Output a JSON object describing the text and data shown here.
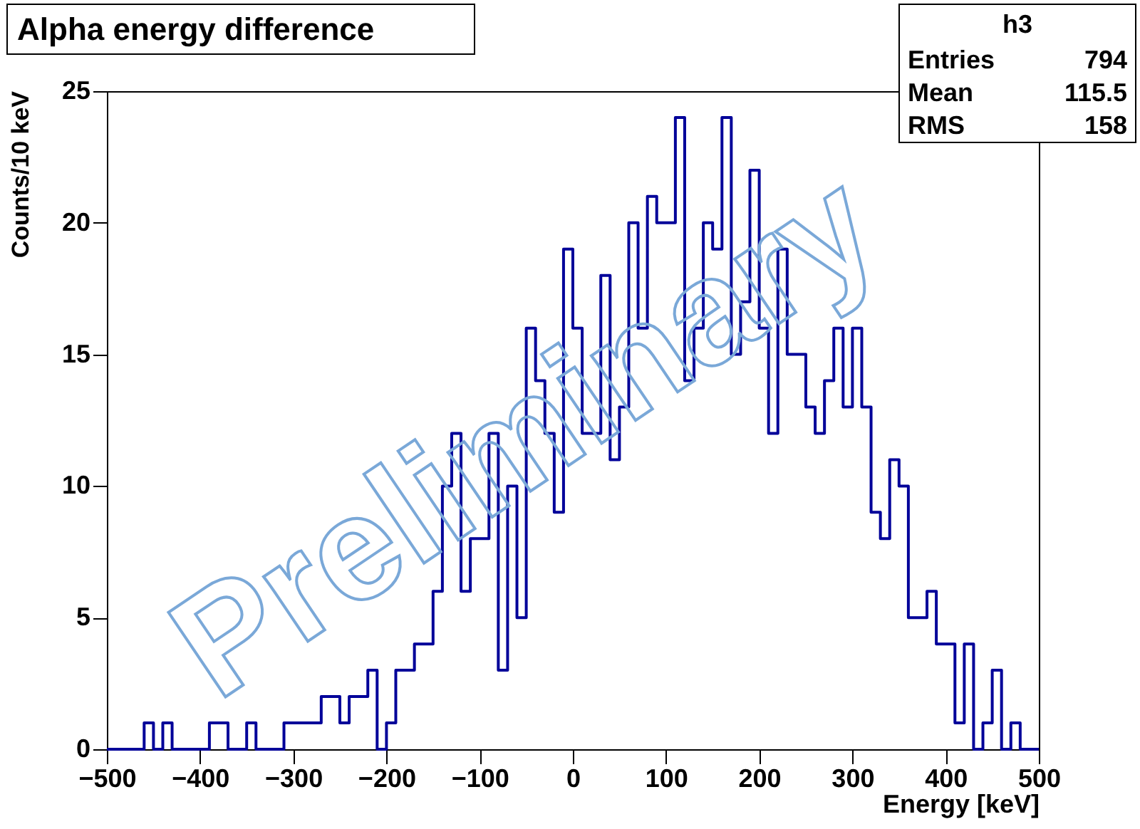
{
  "chart_data": {
    "type": "histogram",
    "title": "Alpha energy difference",
    "xlabel": "Energy [keV]",
    "ylabel": "Counts/10 keV",
    "bins": [
      -500,
      -490,
      -480,
      -470,
      -460,
      -450,
      -440,
      -430,
      -420,
      -410,
      -400,
      -390,
      -380,
      -370,
      -360,
      -350,
      -340,
      -330,
      -320,
      -310,
      -300,
      -290,
      -280,
      -270,
      -260,
      -250,
      -240,
      -230,
      -220,
      -210,
      -200,
      -190,
      -180,
      -170,
      -160,
      -150,
      -140,
      -130,
      -120,
      -110,
      -100,
      -90,
      -80,
      -70,
      -60,
      -50,
      -40,
      -30,
      -20,
      -10,
      0,
      10,
      20,
      30,
      40,
      50,
      60,
      70,
      80,
      90,
      100,
      110,
      120,
      130,
      140,
      150,
      160,
      170,
      180,
      190,
      200,
      210,
      220,
      230,
      240,
      250,
      260,
      270,
      280,
      290,
      300,
      310,
      320,
      330,
      340,
      350,
      360,
      370,
      380,
      390,
      400,
      410,
      420,
      430,
      440,
      450,
      460,
      470,
      480,
      490,
      500
    ],
    "values": [
      0,
      0,
      0,
      0,
      1,
      0,
      1,
      0,
      0,
      0,
      0,
      1,
      1,
      0,
      0,
      1,
      0,
      0,
      0,
      1,
      1,
      1,
      1,
      2,
      2,
      1,
      2,
      2,
      3,
      0,
      1,
      3,
      3,
      4,
      4,
      6,
      10,
      12,
      6,
      8,
      8,
      12,
      3,
      10,
      5,
      16,
      14,
      12,
      9,
      19,
      16,
      12,
      12,
      18,
      11,
      13,
      20,
      16,
      21,
      20,
      20,
      24,
      14,
      16,
      20,
      19,
      24,
      15,
      17,
      22,
      16,
      12,
      19,
      15,
      15,
      13,
      12,
      14,
      16,
      13,
      16,
      13,
      9,
      8,
      11,
      10,
      5,
      5,
      6,
      4,
      4,
      1,
      4,
      0,
      1,
      3,
      0,
      1,
      0,
      0
    ],
    "color": "#000099",
    "xlim": [
      -500,
      500
    ],
    "xticks": [
      -500,
      -400,
      -300,
      -200,
      -100,
      0,
      100,
      200,
      300,
      400,
      500
    ],
    "ylim": [
      0,
      25
    ],
    "yticks": [
      0,
      5,
      10,
      15,
      20,
      25
    ],
    "grid": false,
    "annotations": [
      "Preliminary",
      "h3",
      "Entries",
      "794",
      "Mean",
      "115.5",
      "RMS",
      "158"
    ]
  }
}
